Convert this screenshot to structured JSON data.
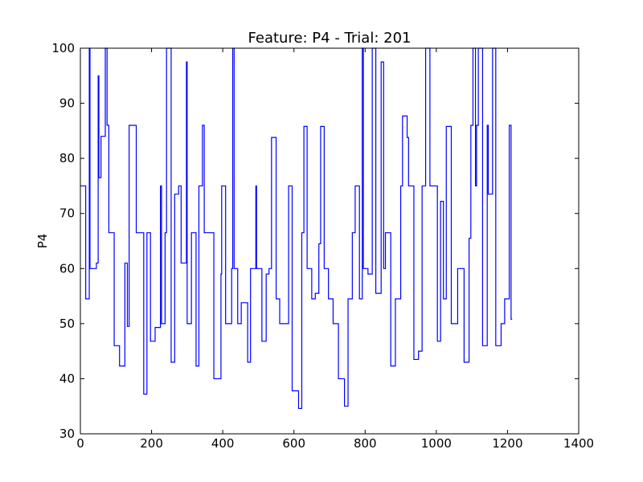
{
  "chart_data": {
    "type": "line",
    "title": "Feature: P4 - Trial: 201",
    "xlabel": "",
    "ylabel": "P4",
    "xlim": [
      0,
      1400
    ],
    "ylim": [
      30,
      100
    ],
    "xticks": [
      0,
      200,
      400,
      600,
      800,
      1000,
      1200,
      1400
    ],
    "yticks": [
      30,
      40,
      50,
      60,
      70,
      80,
      90,
      100
    ],
    "grid": false,
    "colors": {
      "line": "#0000ff",
      "axes": "#000000",
      "background": "#ffffff"
    },
    "series": [
      {
        "name": "P4",
        "step": true,
        "points": [
          [
            0,
            75
          ],
          [
            15,
            75
          ],
          [
            15,
            54.5
          ],
          [
            25,
            54.5
          ],
          [
            25,
            100
          ],
          [
            27,
            100
          ],
          [
            27,
            60
          ],
          [
            45,
            60
          ],
          [
            45,
            61
          ],
          [
            50,
            61
          ],
          [
            50,
            95
          ],
          [
            52,
            95
          ],
          [
            52,
            76.5
          ],
          [
            58,
            76.5
          ],
          [
            58,
            84
          ],
          [
            70,
            84
          ],
          [
            70,
            100
          ],
          [
            75,
            100
          ],
          [
            75,
            86
          ],
          [
            80,
            86
          ],
          [
            80,
            66.5
          ],
          [
            95,
            66.5
          ],
          [
            95,
            46
          ],
          [
            110,
            46
          ],
          [
            110,
            42.3
          ],
          [
            125,
            42.3
          ],
          [
            125,
            61
          ],
          [
            132,
            61
          ],
          [
            132,
            49.5
          ],
          [
            137,
            49.5
          ],
          [
            137,
            86
          ],
          [
            157,
            86
          ],
          [
            157,
            66.5
          ],
          [
            178,
            66.5
          ],
          [
            178,
            37.2
          ],
          [
            187,
            37.2
          ],
          [
            187,
            66.5
          ],
          [
            197,
            66.5
          ],
          [
            197,
            46.8
          ],
          [
            210,
            46.8
          ],
          [
            210,
            49.3
          ],
          [
            225,
            49.3
          ],
          [
            225,
            75
          ],
          [
            228,
            75
          ],
          [
            228,
            50
          ],
          [
            238,
            50
          ],
          [
            238,
            66.5
          ],
          [
            242,
            66.5
          ],
          [
            242,
            100
          ],
          [
            255,
            100
          ],
          [
            255,
            43
          ],
          [
            265,
            43
          ],
          [
            265,
            73.5
          ],
          [
            276,
            73.5
          ],
          [
            276,
            75
          ],
          [
            283,
            75
          ],
          [
            283,
            61
          ],
          [
            298,
            61
          ],
          [
            298,
            97.5
          ],
          [
            300,
            97.5
          ],
          [
            300,
            50
          ],
          [
            312,
            50
          ],
          [
            312,
            66.5
          ],
          [
            325,
            66.5
          ],
          [
            325,
            42.3
          ],
          [
            333,
            42.3
          ],
          [
            333,
            75
          ],
          [
            343,
            75
          ],
          [
            343,
            86
          ],
          [
            348,
            86
          ],
          [
            348,
            66.5
          ],
          [
            375,
            66.5
          ],
          [
            375,
            40
          ],
          [
            395,
            40
          ],
          [
            395,
            59
          ],
          [
            397,
            59
          ],
          [
            397,
            75
          ],
          [
            408,
            75
          ],
          [
            408,
            50
          ],
          [
            425,
            50
          ],
          [
            425,
            60
          ],
          [
            428,
            60
          ],
          [
            428,
            100
          ],
          [
            432,
            100
          ],
          [
            432,
            60
          ],
          [
            442,
            60
          ],
          [
            442,
            50
          ],
          [
            452,
            50
          ],
          [
            452,
            53.8
          ],
          [
            470,
            53.8
          ],
          [
            470,
            43
          ],
          [
            478,
            43
          ],
          [
            478,
            60
          ],
          [
            493,
            60
          ],
          [
            493,
            75
          ],
          [
            495,
            75
          ],
          [
            495,
            60
          ],
          [
            510,
            60
          ],
          [
            510,
            46.8
          ],
          [
            522,
            46.8
          ],
          [
            522,
            59
          ],
          [
            530,
            59
          ],
          [
            530,
            60
          ],
          [
            537,
            60
          ],
          [
            537,
            83.8
          ],
          [
            550,
            83.8
          ],
          [
            550,
            54.5
          ],
          [
            560,
            54.5
          ],
          [
            560,
            50
          ],
          [
            585,
            50
          ],
          [
            585,
            75
          ],
          [
            595,
            75
          ],
          [
            595,
            37.8
          ],
          [
            613,
            37.8
          ],
          [
            613,
            34.6
          ],
          [
            622,
            34.6
          ],
          [
            622,
            66.5
          ],
          [
            628,
            66.5
          ],
          [
            628,
            85.8
          ],
          [
            637,
            85.8
          ],
          [
            637,
            60
          ],
          [
            650,
            60
          ],
          [
            650,
            54.5
          ],
          [
            660,
            54.5
          ],
          [
            660,
            55.5
          ],
          [
            670,
            55.5
          ],
          [
            670,
            64.5
          ],
          [
            675,
            64.5
          ],
          [
            675,
            85.8
          ],
          [
            685,
            85.8
          ],
          [
            685,
            60
          ],
          [
            697,
            60
          ],
          [
            697,
            54.5
          ],
          [
            710,
            54.5
          ],
          [
            710,
            50
          ],
          [
            725,
            50
          ],
          [
            725,
            40
          ],
          [
            742,
            40
          ],
          [
            742,
            35
          ],
          [
            752,
            35
          ],
          [
            752,
            54.5
          ],
          [
            764,
            54.5
          ],
          [
            764,
            66.5
          ],
          [
            772,
            66.5
          ],
          [
            772,
            75
          ],
          [
            784,
            75
          ],
          [
            784,
            54.5
          ],
          [
            792,
            54.5
          ],
          [
            792,
            100
          ],
          [
            795,
            100
          ],
          [
            795,
            60
          ],
          [
            808,
            60
          ],
          [
            808,
            59
          ],
          [
            820,
            59
          ],
          [
            820,
            100
          ],
          [
            830,
            100
          ],
          [
            830,
            55.5
          ],
          [
            845,
            55.5
          ],
          [
            845,
            97.5
          ],
          [
            852,
            97.5
          ],
          [
            852,
            60
          ],
          [
            857,
            60
          ],
          [
            857,
            66.5
          ],
          [
            872,
            66.5
          ],
          [
            872,
            42.3
          ],
          [
            885,
            42.3
          ],
          [
            885,
            54.5
          ],
          [
            900,
            54.5
          ],
          [
            900,
            75
          ],
          [
            905,
            75
          ],
          [
            905,
            87.7
          ],
          [
            918,
            87.7
          ],
          [
            918,
            83.8
          ],
          [
            922,
            83.8
          ],
          [
            922,
            75
          ],
          [
            937,
            75
          ],
          [
            937,
            43.5
          ],
          [
            950,
            43.5
          ],
          [
            950,
            45
          ],
          [
            960,
            45
          ],
          [
            960,
            75
          ],
          [
            970,
            75
          ],
          [
            970,
            100
          ],
          [
            982,
            100
          ],
          [
            982,
            75
          ],
          [
            1003,
            75
          ],
          [
            1003,
            46.8
          ],
          [
            1012,
            46.8
          ],
          [
            1012,
            72.2
          ],
          [
            1020,
            72.2
          ],
          [
            1020,
            54.5
          ],
          [
            1028,
            54.5
          ],
          [
            1028,
            85.8
          ],
          [
            1042,
            85.8
          ],
          [
            1042,
            50
          ],
          [
            1060,
            50
          ],
          [
            1060,
            60
          ],
          [
            1078,
            60
          ],
          [
            1078,
            43
          ],
          [
            1092,
            43
          ],
          [
            1092,
            65.5
          ],
          [
            1097,
            65.5
          ],
          [
            1097,
            86
          ],
          [
            1103,
            86
          ],
          [
            1103,
            100
          ],
          [
            1110,
            100
          ],
          [
            1110,
            75
          ],
          [
            1113,
            75
          ],
          [
            1113,
            86
          ],
          [
            1118,
            86
          ],
          [
            1118,
            100
          ],
          [
            1130,
            100
          ],
          [
            1130,
            46
          ],
          [
            1143,
            46
          ],
          [
            1143,
            86
          ],
          [
            1146,
            86
          ],
          [
            1146,
            73.5
          ],
          [
            1158,
            73.5
          ],
          [
            1158,
            100
          ],
          [
            1167,
            100
          ],
          [
            1167,
            46
          ],
          [
            1182,
            46
          ],
          [
            1182,
            50
          ],
          [
            1192,
            50
          ],
          [
            1192,
            54.5
          ],
          [
            1205,
            54.5
          ],
          [
            1205,
            86
          ],
          [
            1210,
            86
          ],
          [
            1210,
            50.8
          ],
          [
            1213,
            50.8
          ]
        ]
      }
    ]
  }
}
